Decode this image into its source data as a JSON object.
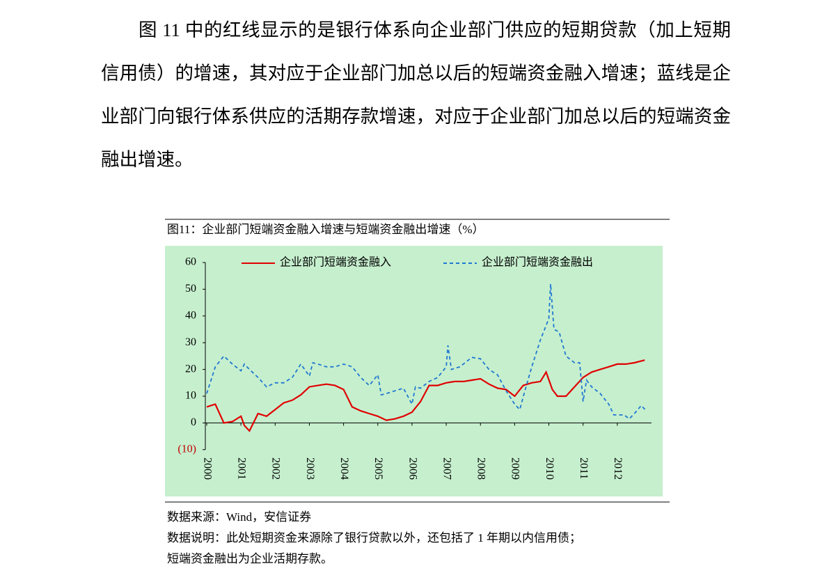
{
  "paragraph": "图 11 中的红线显示的是银行体系向企业部门供应的短期贷款（加上短期信用债）的增速，其对应于企业部门加总以后的短端资金融入增速；蓝线是企业部门向银行体系供应的活期存款增速，对应于企业部门加总以后的短端资金融出增速。",
  "figure": {
    "caption": "图11：企业部门短端资金融入增速与短端资金融出增速（%）",
    "source": "数据来源：Wind，安信证券",
    "note_lines": [
      "数据说明：此处短期资金来源除了银行贷款以外，还包括了 1 年期以内信用债；",
      "短端资金融出为企业活期存款。"
    ]
  },
  "chart_data": {
    "type": "line",
    "background": "#c6efce",
    "xlim": [
      2000,
      2013
    ],
    "xticks": [
      2000,
      2001,
      2002,
      2003,
      2004,
      2005,
      2006,
      2007,
      2008,
      2009,
      2010,
      2011,
      2012
    ],
    "ylim": [
      -10,
      60
    ],
    "yticks": [
      {
        "value": -10,
        "label": "(10)"
      },
      0,
      10,
      20,
      30,
      40,
      50,
      60
    ],
    "negative_tick_color": "#c00000",
    "grid": false,
    "series": [
      {
        "name": "企业部门短端资金融入",
        "color": "#e00000",
        "dash": false,
        "x": [
          2000,
          2000.25,
          2000.5,
          2000.75,
          2001,
          2001.1,
          2001.25,
          2001.5,
          2001.75,
          2002,
          2002.25,
          2002.5,
          2002.75,
          2003,
          2003.25,
          2003.5,
          2003.75,
          2004,
          2004.25,
          2004.5,
          2004.75,
          2005,
          2005.25,
          2005.5,
          2005.75,
          2006,
          2006.25,
          2006.5,
          2006.75,
          2007,
          2007.25,
          2007.5,
          2007.75,
          2008,
          2008.25,
          2008.5,
          2008.75,
          2009,
          2009.25,
          2009.5,
          2009.75,
          2009.92,
          2010.1,
          2010.25,
          2010.5,
          2010.75,
          2011,
          2011.25,
          2011.5,
          2011.75,
          2012,
          2012.25,
          2012.5,
          2012.8
        ],
        "values": [
          6,
          7,
          0,
          0.5,
          2.5,
          -1,
          -3,
          3.5,
          2.5,
          5,
          7.5,
          8.5,
          10.5,
          13.5,
          14,
          14.5,
          14,
          12.5,
          6,
          4.5,
          3.5,
          2.5,
          1,
          1.5,
          2.5,
          4,
          8,
          14,
          14,
          15,
          15.5,
          15.5,
          16,
          16.5,
          14.5,
          13,
          12.5,
          10,
          14,
          15,
          15.5,
          19,
          12.5,
          10,
          10,
          13.5,
          17,
          19,
          20,
          21,
          22,
          22,
          22.5,
          23.5
        ]
      },
      {
        "name": "企业部门短端资金融出",
        "color": "#1f78d0",
        "dash": true,
        "x": [
          2000,
          2000.25,
          2000.5,
          2000.75,
          2001,
          2001.1,
          2001.25,
          2001.5,
          2001.75,
          2002,
          2002.25,
          2002.5,
          2002.75,
          2003,
          2003.1,
          2003.25,
          2003.5,
          2003.75,
          2004,
          2004.25,
          2004.5,
          2004.75,
          2005,
          2005.1,
          2005.25,
          2005.5,
          2005.75,
          2006,
          2006.1,
          2006.25,
          2006.5,
          2006.75,
          2007,
          2007.05,
          2007.15,
          2007.4,
          2007.75,
          2008,
          2008.25,
          2008.5,
          2008.75,
          2009,
          2009.15,
          2009.3,
          2009.5,
          2009.75,
          2010,
          2010.05,
          2010.15,
          2010.3,
          2010.5,
          2010.75,
          2010.9,
          2011,
          2011.1,
          2011.25,
          2011.5,
          2011.75,
          2011.9,
          2012.2,
          2012.35,
          2012.5,
          2012.7,
          2012.85
        ],
        "values": [
          11,
          21,
          25,
          22,
          19.5,
          22,
          20,
          17,
          13.5,
          15,
          15,
          17,
          22,
          17.5,
          22.5,
          22,
          21,
          21,
          22,
          21,
          17,
          14,
          18,
          10.5,
          11,
          12,
          13,
          7,
          13.5,
          13,
          15.5,
          17,
          21,
          29,
          20,
          21,
          24.5,
          24,
          20,
          18,
          12,
          7,
          5,
          12,
          21,
          31,
          39,
          52,
          35,
          34,
          25,
          22.5,
          22.5,
          8,
          16,
          13.5,
          11,
          7,
          3,
          3,
          1.5,
          3.5,
          6.5,
          4.5
        ]
      }
    ]
  }
}
